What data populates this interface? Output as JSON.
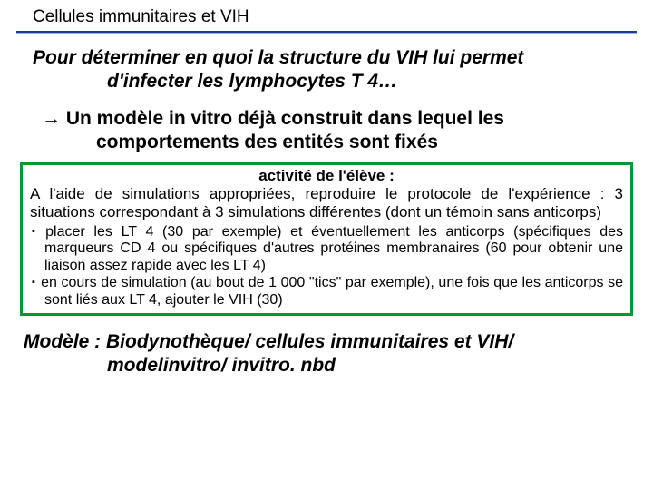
{
  "header": {
    "title": "Cellules immunitaires et VIH"
  },
  "question": {
    "line1": "Pour déterminer en quoi la structure du VIH lui permet",
    "line2": "d'infecter les lymphocytes T 4…"
  },
  "arrow": "→",
  "model": {
    "line1": " Un modèle in vitro déjà construit dans lequel les",
    "line2": "comportements des entités sont fixés"
  },
  "activity": {
    "title": "activité  de  l'élève :",
    "intro": "A l'aide de simulations appropriées, reproduire le protocole de l'expérience : 3 situations correspondant à 3 simulations différentes (dont un témoin sans anticorps)",
    "items": [
      "placer les LT 4  (30 par exemple) et éventuellement les anticorps (spécifiques des marqueurs CD 4 ou spécifiques d'autres protéines membranaires (60 pour obtenir une liaison assez rapide avec les LT 4)",
      "en cours de simulation (au bout de 1 000 \"tics\" par exemple), une fois que les anticorps se sont liés aux LT 4, ajouter le VIH (30)"
    ]
  },
  "footer": {
    "line1": "Modèle : Biodynothèque/ cellules immunitaires et VIH/",
    "line2": "modelinvitro/ invitro. nbd"
  },
  "colors": {
    "divider_top": "#1a3a9c",
    "divider_bottom": "#99b3e6",
    "box_border": "#009933",
    "text": "#000000",
    "background": "#ffffff"
  }
}
